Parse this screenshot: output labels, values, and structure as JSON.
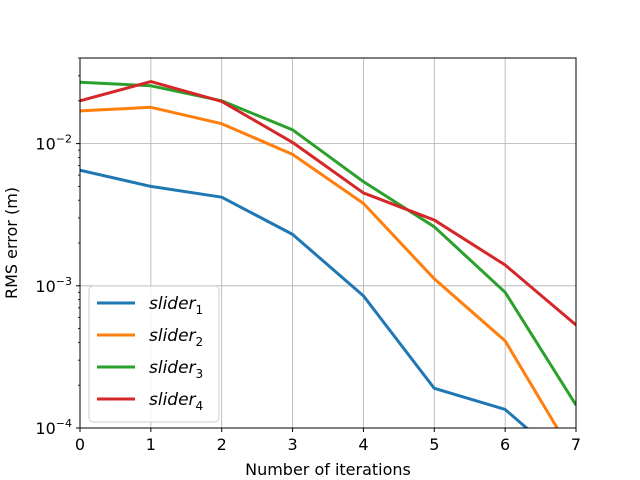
{
  "chart_data": {
    "type": "line",
    "title": "",
    "xlabel": "Number of iterations",
    "ylabel": "RMS error (m)",
    "xlim": [
      0,
      7
    ],
    "ylim": [
      0.0001,
      0.04
    ],
    "yscale": "log",
    "grid": true,
    "legend_position": "bottom-left",
    "x_ticks": [
      "0",
      "1",
      "2",
      "3",
      "4",
      "5",
      "6",
      "7"
    ],
    "y_ticks": [
      {
        "value": 0.01,
        "base": "10",
        "exp": "−2"
      },
      {
        "value": 0.001,
        "base": "10",
        "exp": "−3"
      },
      {
        "value": 0.0001,
        "base": "10",
        "exp": "−4"
      }
    ],
    "x": [
      0,
      1,
      2,
      3,
      4,
      5,
      6,
      7
    ],
    "series": [
      {
        "name": "slider",
        "sub": "1",
        "color": "#1f77b4",
        "values": [
          0.0065,
          0.005,
          0.0042,
          0.0023,
          0.00085,
          0.00019,
          0.000135,
          5e-05
        ]
      },
      {
        "name": "slider",
        "sub": "2",
        "color": "#ff7f0e",
        "values": [
          0.017,
          0.018,
          0.0138,
          0.0084,
          0.0038,
          0.00112,
          0.00041,
          6e-05
        ]
      },
      {
        "name": "slider",
        "sub": "3",
        "color": "#2ca02c",
        "values": [
          0.027,
          0.0255,
          0.02,
          0.0125,
          0.0054,
          0.0026,
          0.0009,
          0.000145
        ]
      },
      {
        "name": "slider",
        "sub": "4",
        "color": "#d62728",
        "values": [
          0.02,
          0.0273,
          0.0198,
          0.0102,
          0.0045,
          0.0029,
          0.0014,
          0.00053
        ]
      }
    ]
  }
}
